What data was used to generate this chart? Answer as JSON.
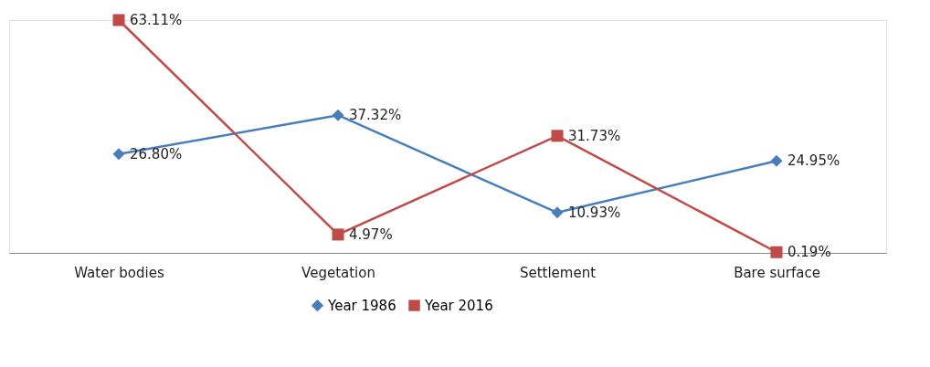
{
  "chart_data": {
    "type": "line",
    "categories": [
      "Water bodies",
      "Vegetation",
      "Settlement",
      "Bare surface"
    ],
    "series": [
      {
        "name": "Year 1986",
        "color": "#4a7ebb",
        "marker": "diamond",
        "values": [
          26.8,
          37.32,
          10.93,
          24.95
        ],
        "value_labels": [
          "26.80%",
          "37.32%",
          "10.93%",
          "24.95%"
        ]
      },
      {
        "name": "Year 2016",
        "color": "#be4b48",
        "marker": "square",
        "values": [
          63.11,
          4.97,
          31.73,
          0.19
        ],
        "value_labels": [
          "63.11%",
          "4.97%",
          "31.73%",
          "0.19%"
        ]
      }
    ],
    "grid": false,
    "legend": "bottom",
    "line_style": "solid"
  }
}
